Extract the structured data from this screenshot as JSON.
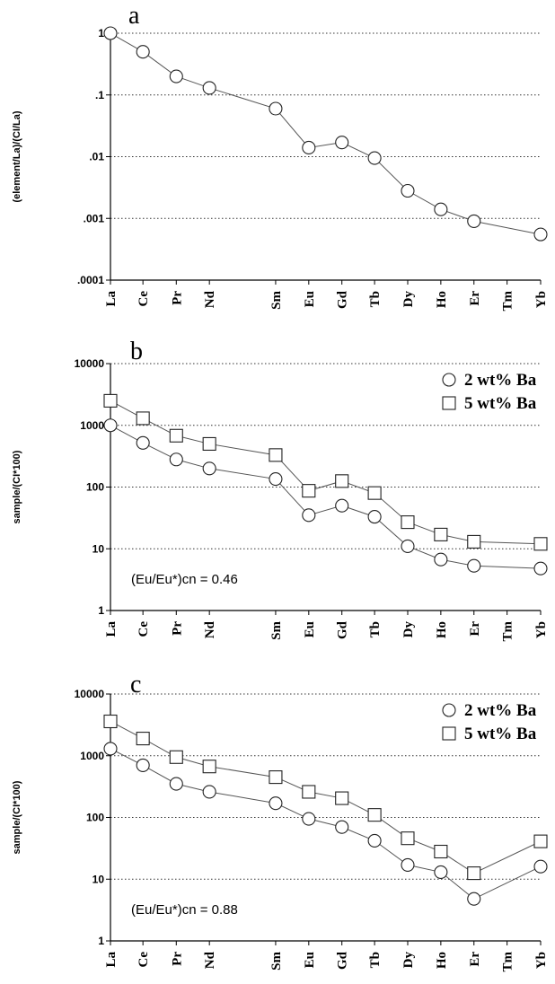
{
  "chart_data": [
    {
      "type": "line",
      "panel_label": "a",
      "ylabel": "(element/La)/(CI/La)",
      "yscale": "log",
      "ylim": [
        0.0001,
        1
      ],
      "ytick_labels": [
        ".0001",
        ".001",
        ".01",
        ".1",
        "1"
      ],
      "grid": "horizontal-dotted",
      "categories": [
        "La",
        "Ce",
        "Pr",
        "Nd",
        "Sm",
        "Eu",
        "Gd",
        "Tb",
        "Dy",
        "Ho",
        "Er",
        "Tm",
        "Yb"
      ],
      "series": [
        {
          "marker": "circle",
          "values": [
            1,
            0.5,
            0.2,
            0.13,
            0.06,
            0.014,
            0.017,
            0.0095,
            0.0028,
            0.0014,
            0.0009,
            null,
            0.00055
          ]
        }
      ],
      "annotation": ""
    },
    {
      "type": "line",
      "panel_label": "b",
      "ylabel": "sample/(CI*100)",
      "yscale": "log",
      "ylim": [
        1,
        10000
      ],
      "ytick_labels": [
        "1",
        "10",
        "100",
        "1000",
        "10000"
      ],
      "grid": "horizontal-dotted",
      "legend_position": "top-right",
      "categories": [
        "La",
        "Ce",
        "Pr",
        "Nd",
        "Sm",
        "Eu",
        "Gd",
        "Tb",
        "Dy",
        "Ho",
        "Er",
        "Tm",
        "Yb"
      ],
      "series": [
        {
          "name": "2 wt% Ba",
          "marker": "circle",
          "values": [
            1000,
            520,
            280,
            200,
            135,
            35,
            50,
            33,
            11,
            6.7,
            5.3,
            null,
            4.8
          ]
        },
        {
          "name": "5 wt% Ba",
          "marker": "square",
          "values": [
            2500,
            1300,
            680,
            500,
            330,
            87,
            125,
            80,
            27,
            17,
            13,
            null,
            12
          ]
        }
      ],
      "annotation": "(Eu/Eu*)cn = 0.46"
    },
    {
      "type": "line",
      "panel_label": "c",
      "ylabel": "sample/(CI*100)",
      "yscale": "log",
      "ylim": [
        1,
        10000
      ],
      "ytick_labels": [
        "1",
        "10",
        "100",
        "1000",
        "10000"
      ],
      "grid": "horizontal-dotted",
      "legend_position": "top-right",
      "categories": [
        "La",
        "Ce",
        "Pr",
        "Nd",
        "Sm",
        "Eu",
        "Gd",
        "Tb",
        "Dy",
        "Ho",
        "Er",
        "Tm",
        "Yb"
      ],
      "series": [
        {
          "name": "2 wt% Ba",
          "marker": "circle",
          "values": [
            1300,
            700,
            350,
            260,
            170,
            95,
            70,
            42,
            17,
            13,
            4.8,
            null,
            16
          ]
        },
        {
          "name": "5 wt% Ba",
          "marker": "square",
          "values": [
            3600,
            1900,
            950,
            670,
            450,
            260,
            205,
            110,
            46,
            28,
            12.5,
            null,
            41
          ]
        }
      ],
      "annotation": "(Eu/Eu*)cn = 0.88"
    }
  ]
}
